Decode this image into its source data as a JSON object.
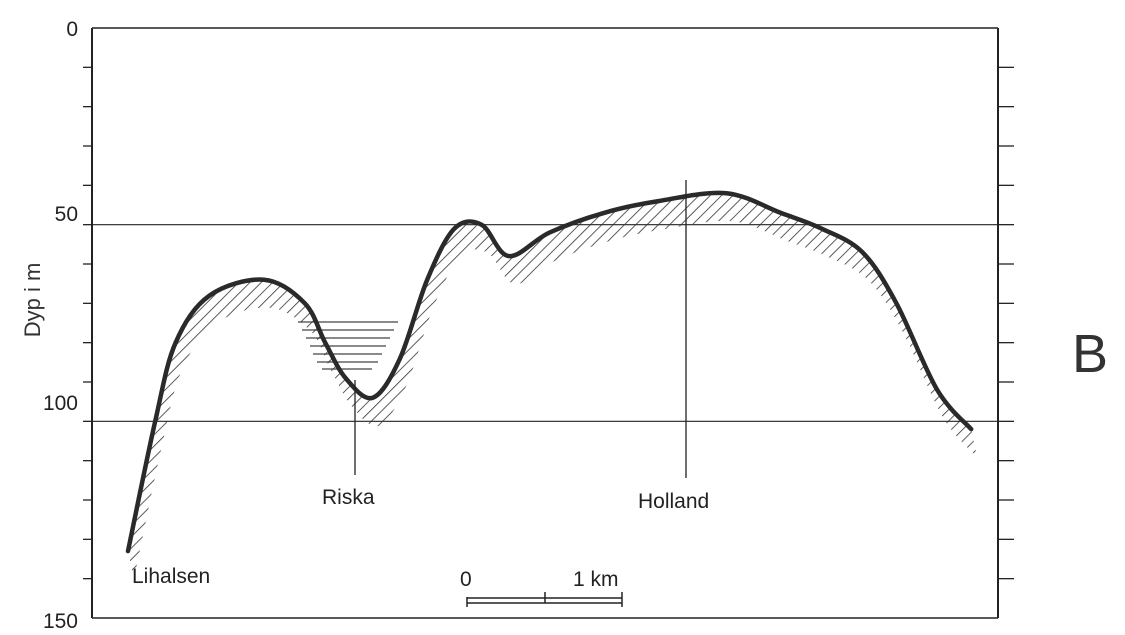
{
  "figure": {
    "panel_letter": "B",
    "y_axis_label": "Dyp i m"
  },
  "y_ticks": [
    {
      "value": 0,
      "label": "0"
    },
    {
      "value": 50,
      "label": "50"
    },
    {
      "value": 100,
      "label": "100"
    },
    {
      "value": 150,
      "label": "150"
    }
  ],
  "locations": [
    {
      "name": "Lihalsen",
      "depth": 133
    },
    {
      "name": "Riska",
      "depth": 94
    },
    {
      "name": "Holland",
      "depth": 41
    }
  ],
  "scale_bar": {
    "start_label": "0",
    "end_label": "1 km"
  },
  "chart_data": {
    "type": "line",
    "title": "",
    "xlabel": "",
    "ylabel": "Dyp i m",
    "y_inverted": true,
    "ylim": [
      0,
      150
    ],
    "gridlines_y": [
      50,
      100
    ],
    "x_unit": "km",
    "series": [
      {
        "x": [
          0.0,
          0.2,
          0.35,
          0.6,
          1.0,
          1.3,
          1.45,
          1.6,
          1.8,
          2.0,
          2.2,
          2.4,
          2.6,
          2.8,
          3.1,
          3.5,
          3.9,
          4.4,
          4.8,
          5.1,
          5.4,
          5.65,
          5.95,
          6.2
        ],
        "y": [
          133,
          100,
          80,
          68,
          64,
          70,
          80,
          89,
          94,
          84,
          64,
          51,
          50,
          58,
          52,
          47,
          44,
          42,
          47,
          51,
          57,
          70,
          92,
          102
        ]
      }
    ]
  }
}
